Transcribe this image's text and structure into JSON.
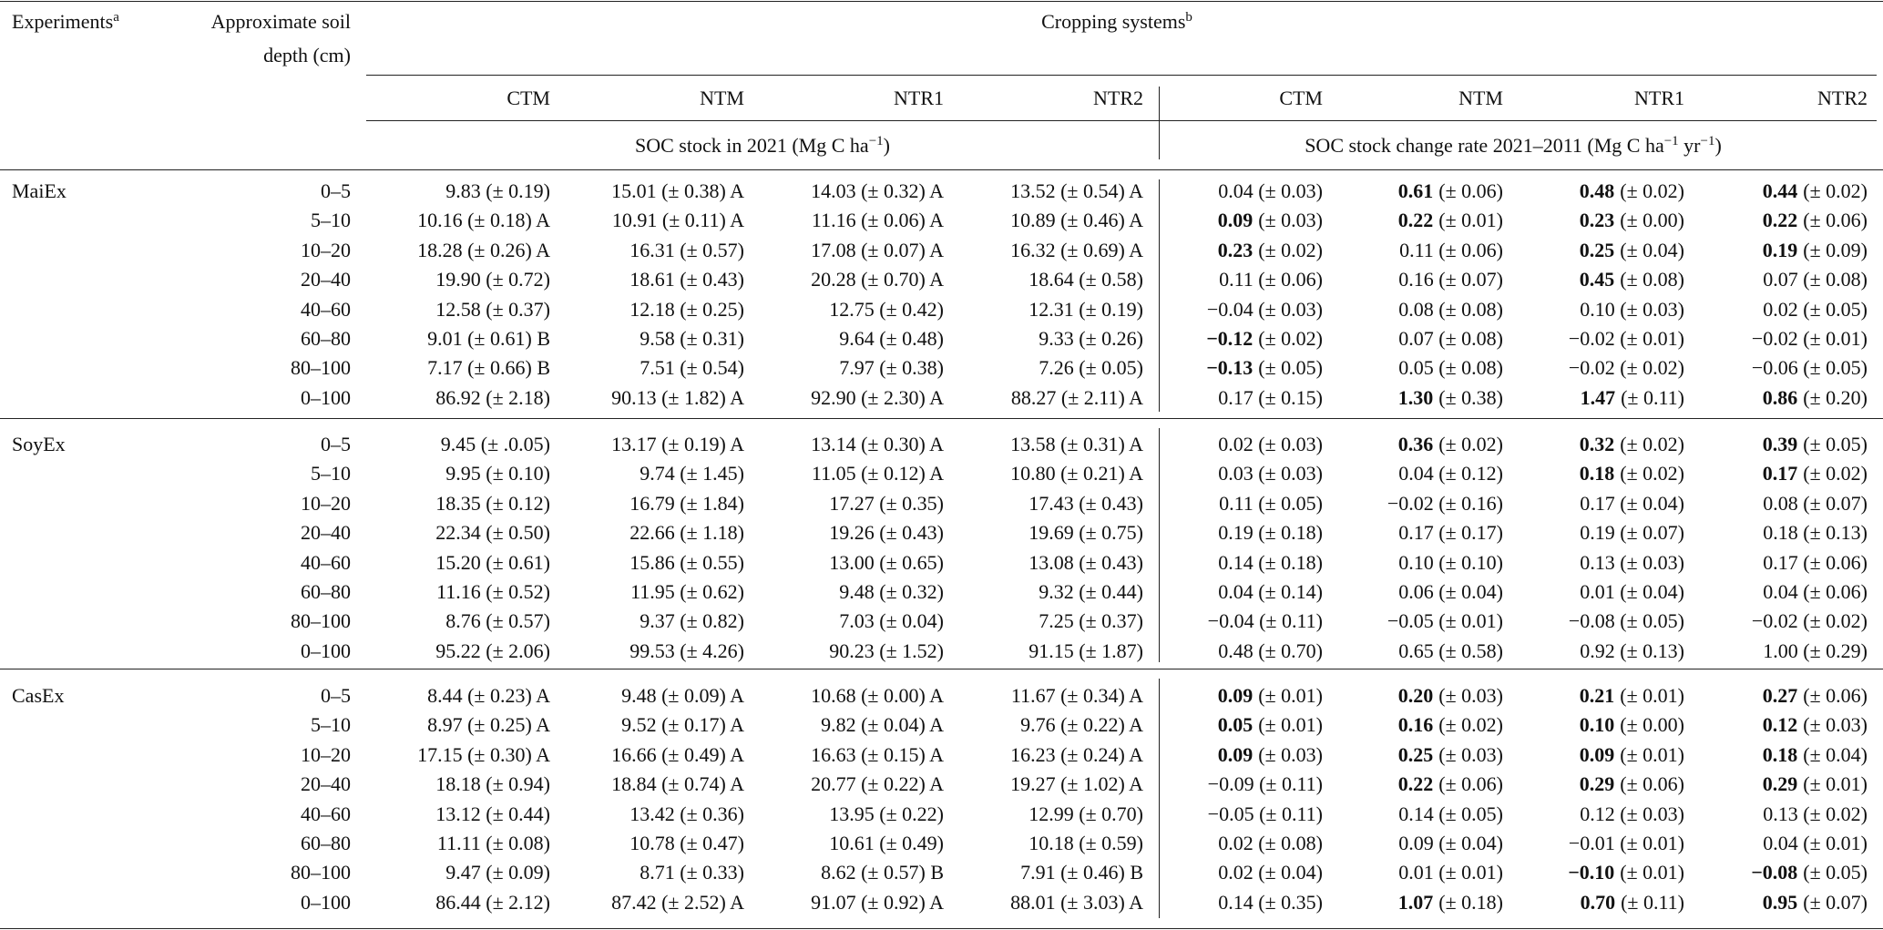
{
  "header": {
    "experiments": "Experiments",
    "experiments_sup": "a",
    "depth": [
      "Approximate soil",
      "depth (cm)"
    ],
    "cropping": "Cropping systems",
    "cropping_sup": "b",
    "systems": [
      "CTM",
      "NTM",
      "NTR1",
      "NTR2",
      "CTM",
      "NTM",
      "NTR1",
      "NTR2"
    ],
    "stock": [
      "SOC stock in 2021 (Mg C ha",
      "−1",
      ")"
    ],
    "rate": [
      "SOC stock change rate 2021–2011 (Mg C ha",
      "−1",
      " yr",
      "−1",
      ")"
    ]
  },
  "groups": [
    {
      "name": "MaiEx",
      "depths": [
        "0–5",
        "5–10",
        "10–20",
        "20–40",
        "40–60",
        "60–80",
        "80–100",
        "0–100"
      ],
      "rows": [
        [
          "9.83 (± 0.19)",
          "15.01 (± 0.38) A",
          "14.03 (± 0.32) A",
          "13.52 (± 0.54) A",
          "0.04 (± 0.03)",
          {
            "bold": "0.61",
            "text": "(± 0.06)"
          },
          {
            "bold": "0.48",
            "text": "(± 0.02)"
          },
          {
            "bold": "0.44",
            "text": "(± 0.02)"
          }
        ],
        [
          "10.16 (± 0.18) A",
          "10.91 (± 0.11) A",
          "11.16 (± 0.06) A",
          "10.89 (± 0.46) A",
          {
            "bold": "0.09",
            "text": "(± 0.03)"
          },
          {
            "bold": "0.22",
            "text": "(± 0.01)"
          },
          {
            "bold": "0.23",
            "text": "(± 0.00)"
          },
          {
            "bold": "0.22",
            "text": "(± 0.06)"
          }
        ],
        [
          "18.28 (± 0.26) A",
          "16.31 (± 0.57)",
          "17.08 (± 0.07) A",
          "16.32 (± 0.69) A",
          {
            "bold": "0.23",
            "text": "(± 0.02)"
          },
          "0.11 (± 0.06)",
          {
            "bold": "0.25",
            "text": "(± 0.04)"
          },
          {
            "bold": "0.19",
            "text": "(± 0.09)"
          }
        ],
        [
          "19.90 (± 0.72)",
          "18.61 (± 0.43)",
          "20.28 (± 0.70) A",
          "18.64 (± 0.58)",
          "0.11 (± 0.06)",
          "0.16 (± 0.07)",
          {
            "bold": "0.45",
            "text": "(± 0.08)"
          },
          "0.07 (± 0.08)"
        ],
        [
          "12.58 (± 0.37)",
          "12.18 (± 0.25)",
          "12.75 (± 0.42)",
          "12.31 (± 0.19)",
          "−0.04 (± 0.03)",
          "0.08 (± 0.08)",
          "0.10 (± 0.03)",
          "0.02 (± 0.05)"
        ],
        [
          "9.01 (± 0.61) B",
          "9.58 (± 0.31)",
          "9.64 (± 0.48)",
          "9.33 (± 0.26)",
          {
            "bold": "−0.12",
            "text": "(± 0.02)"
          },
          "0.07 (± 0.08)",
          "−0.02 (± 0.01)",
          "−0.02 (± 0.01)"
        ],
        [
          "7.17 (± 0.66) B",
          "7.51 (± 0.54)",
          "7.97 (± 0.38)",
          "7.26 (± 0.05)",
          {
            "bold": "−0.13",
            "text": "(± 0.05)"
          },
          "0.05 (± 0.08)",
          "−0.02 (± 0.02)",
          "−0.06 (± 0.05)"
        ],
        [
          "86.92 (± 2.18)",
          "90.13 (± 1.82) A",
          "92.90 (± 2.30) A",
          "88.27 (± 2.11) A",
          "0.17 (± 0.15)",
          {
            "bold": "1.30",
            "text": "(± 0.38)"
          },
          {
            "bold": "1.47",
            "text": "(± 0.11)"
          },
          {
            "bold": "0.86",
            "text": "(± 0.20)"
          }
        ]
      ]
    },
    {
      "name": "SoyEx",
      "depths": [
        "0–5",
        "5–10",
        "10–20",
        "20–40",
        "40–60",
        "60–80",
        "80–100",
        "0–100"
      ],
      "rows": [
        [
          "9.45 (± .0.05)",
          "13.17 (± 0.19) A",
          "13.14 (± 0.30) A",
          "13.58 (± 0.31) A",
          "0.02 (± 0.03)",
          {
            "bold": "0.36",
            "text": "(± 0.02)"
          },
          {
            "bold": "0.32",
            "text": "(± 0.02)"
          },
          {
            "bold": "0.39",
            "text": "(± 0.05)"
          }
        ],
        [
          "9.95 (± 0.10)",
          "9.74 (± 1.45)",
          "11.05 (± 0.12) A",
          "10.80 (± 0.21) A",
          "0.03 (± 0.03)",
          "0.04 (± 0.12)",
          {
            "bold": "0.18",
            "text": "(± 0.02)"
          },
          {
            "bold": "0.17",
            "text": "(± 0.02)"
          }
        ],
        [
          "18.35 (± 0.12)",
          "16.79 (± 1.84)",
          "17.27 (± 0.35)",
          "17.43 (± 0.43)",
          "0.11 (± 0.05)",
          "−0.02 (± 0.16)",
          "0.17 (± 0.04)",
          "0.08 (± 0.07)"
        ],
        [
          "22.34 (± 0.50)",
          "22.66 (± 1.18)",
          "19.26 (± 0.43)",
          "19.69 (± 0.75)",
          "0.19 (± 0.18)",
          "0.17 (± 0.17)",
          "0.19 (± 0.07)",
          "0.18 (± 0.13)"
        ],
        [
          "15.20 (± 0.61)",
          "15.86 (± 0.55)",
          "13.00 (± 0.65)",
          "13.08 (± 0.43)",
          "0.14 (± 0.18)",
          "0.10 (± 0.10)",
          "0.13 (± 0.03)",
          "0.17 (± 0.06)"
        ],
        [
          "11.16 (± 0.52)",
          "11.95 (± 0.62)",
          "9.48 (± 0.32)",
          "9.32 (± 0.44)",
          "0.04 (± 0.14)",
          "0.06 (± 0.04)",
          "0.01 (± 0.04)",
          "0.04 (± 0.06)"
        ],
        [
          "8.76 (± 0.57)",
          "9.37 (± 0.82)",
          "7.03 (± 0.04)",
          "7.25 (± 0.37)",
          "−0.04 (± 0.11)",
          "−0.05 (± 0.01)",
          "−0.08 (± 0.05)",
          "−0.02 (± 0.02)"
        ],
        [
          "95.22 (± 2.06)",
          "99.53 (± 4.26)",
          "90.23 (± 1.52)",
          "91.15 (± 1.87)",
          "0.48 (± 0.70)",
          "0.65 (± 0.58)",
          "0.92 (± 0.13)",
          "1.00 (± 0.29)"
        ]
      ]
    },
    {
      "name": "CasEx",
      "depths": [
        "0–5",
        "5–10",
        "10–20",
        "20–40",
        "40–60",
        "60–80",
        "80–100",
        "0–100"
      ],
      "rows": [
        [
          "8.44 (± 0.23) A",
          "9.48 (± 0.09) A",
          "10.68 (± 0.00) A",
          "11.67 (± 0.34) A",
          {
            "bold": "0.09",
            "text": "(± 0.01)"
          },
          {
            "bold": "0.20",
            "text": "(± 0.03)"
          },
          {
            "bold": "0.21",
            "text": "(± 0.01)"
          },
          {
            "bold": "0.27",
            "text": "(± 0.06)"
          }
        ],
        [
          "8.97 (± 0.25) A",
          "9.52 (± 0.17) A",
          "9.82 (± 0.04) A",
          "9.76 (± 0.22) A",
          {
            "bold": "0.05",
            "text": "(± 0.01)"
          },
          {
            "bold": "0.16",
            "text": "(± 0.02)"
          },
          {
            "bold": "0.10",
            "text": "(± 0.00)"
          },
          {
            "bold": "0.12",
            "text": "(± 0.03)"
          }
        ],
        [
          "17.15 (± 0.30) A",
          "16.66 (± 0.49) A",
          "16.63 (± 0.15) A",
          "16.23 (± 0.24) A",
          {
            "bold": "0.09",
            "text": "(± 0.03)"
          },
          {
            "bold": "0.25",
            "text": "(± 0.03)"
          },
          {
            "bold": "0.09",
            "text": "(± 0.01)"
          },
          {
            "bold": "0.18",
            "text": "(± 0.04)"
          }
        ],
        [
          "18.18 (± 0.94)",
          "18.84 (± 0.74) A",
          "20.77 (± 0.22) A",
          "19.27 (± 1.02) A",
          "−0.09 (± 0.11)",
          {
            "bold": "0.22",
            "text": "(± 0.06)"
          },
          {
            "bold": "0.29",
            "text": "(± 0.06)"
          },
          {
            "bold": "0.29",
            "text": "(± 0.01)"
          }
        ],
        [
          "13.12 (± 0.44)",
          "13.42 (± 0.36)",
          "13.95 (± 0.22)",
          "12.99 (± 0.70)",
          "−0.05 (± 0.11)",
          "0.14 (± 0.05)",
          "0.12 (± 0.03)",
          "0.13 (± 0.02)"
        ],
        [
          "11.11 (± 0.08)",
          "10.78 (± 0.47)",
          "10.61 (± 0.49)",
          "10.18 (± 0.59)",
          "0.02 (± 0.08)",
          "0.09 (± 0.04)",
          "−0.01 (± 0.01)",
          "0.04 (± 0.01)"
        ],
        [
          "9.47 (± 0.09)",
          "8.71 (± 0.33)",
          "8.62 (± 0.57) B",
          "7.91 (± 0.46) B",
          "0.02 (± 0.04)",
          "0.01 (± 0.01)",
          {
            "bold": "−0.10",
            "text": "(± 0.01)"
          },
          {
            "bold": "−0.08",
            "text": "(± 0.05)"
          }
        ],
        [
          "86.44 (± 2.12)",
          "87.42 (± 2.52) A",
          "91.07 (± 0.92) A",
          "88.01 (± 3.03) A",
          "0.14 (± 0.35)",
          {
            "bold": "1.07",
            "text": "(± 0.18)"
          },
          {
            "bold": "0.70",
            "text": "(± 0.11)"
          },
          {
            "bold": "0.95",
            "text": "(± 0.07)"
          }
        ]
      ]
    }
  ]
}
